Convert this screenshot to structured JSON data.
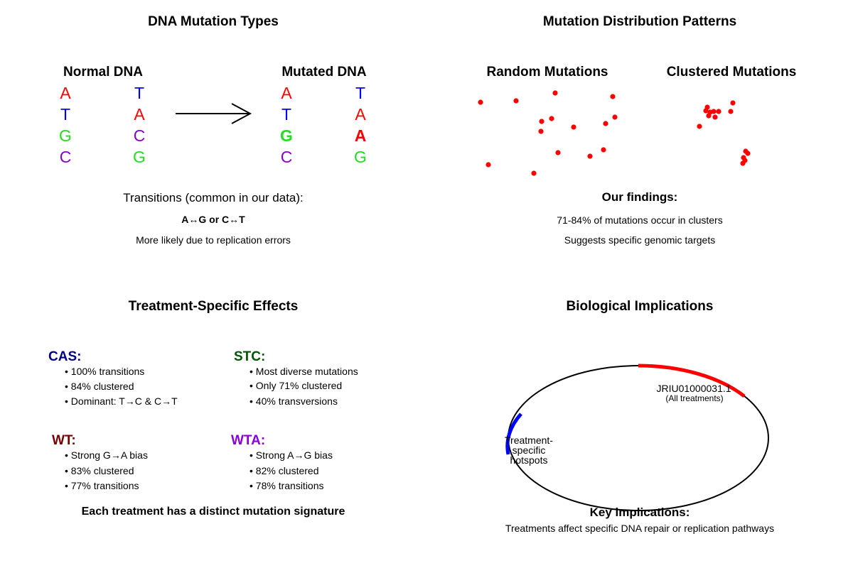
{
  "colors": {
    "A": "#ff0000",
    "T": "#0000ff",
    "G": "#22dd22",
    "C": "#8800cc",
    "cas": "#000088",
    "stc": "#005500",
    "wt": "#770000",
    "wta": "#8800dd",
    "point": "#ff0000",
    "ring": "#000000",
    "hot_red": "#ff0000",
    "hot_blue": "#0000ff"
  },
  "icons": {
    "arrow": "right-arrow-icon"
  },
  "panel1": {
    "title": "DNA Mutation Types",
    "normal_title": "Normal DNA",
    "mutated_title": "Mutated DNA",
    "normal": {
      "left": [
        "A",
        "T",
        "G",
        "C"
      ],
      "right": [
        "T",
        "A",
        "C",
        "G"
      ]
    },
    "mutated": {
      "left": [
        "A",
        "T",
        "G",
        "C"
      ],
      "right": [
        "T",
        "A",
        "A",
        "G"
      ]
    },
    "transitions_label": "Transitions (common in our data):",
    "transitions_formula": "A↔G  or  C↔T",
    "transitions_note": "More likely due to replication errors"
  },
  "panel2": {
    "title": "Mutation Distribution Patterns",
    "random_title": "Random Mutations",
    "clustered_title": "Clustered Mutations",
    "findings_title": "Our findings:",
    "finding_1": "71-84% of mutations occur in clusters",
    "finding_2": "Suggests specific genomic targets"
  },
  "panel3": {
    "title": "Treatment-Specific Effects",
    "treatments": [
      {
        "name": "CAS:",
        "bullets": [
          "• 100% transitions",
          "• 84% clustered",
          "• Dominant: T→C & C→T"
        ]
      },
      {
        "name": "STC:",
        "bullets": [
          "• Most diverse mutations",
          "• Only 71% clustered",
          "• 40% transversions"
        ]
      },
      {
        "name": "WT:",
        "bullets": [
          "• Strong G→A bias",
          "• 83% clustered",
          "• 77% transitions"
        ]
      },
      {
        "name": "WTA:",
        "bullets": [
          "• Strong A→G bias",
          "• 82% clustered",
          "• 78% transitions"
        ]
      }
    ],
    "summary": "Each treatment has a distinct mutation signature"
  },
  "panel4": {
    "title": "Biological Implications",
    "contig_label": "JRIU01000031.1",
    "contig_note": "(All treatments)",
    "hotspot_line1": "Treatment-",
    "hotspot_line2": "specific",
    "hotspot_line3": "hotspots",
    "implications_title": "Key implications:",
    "implications_text": "Treatments affect specific DNA repair or replication pathways"
  }
}
